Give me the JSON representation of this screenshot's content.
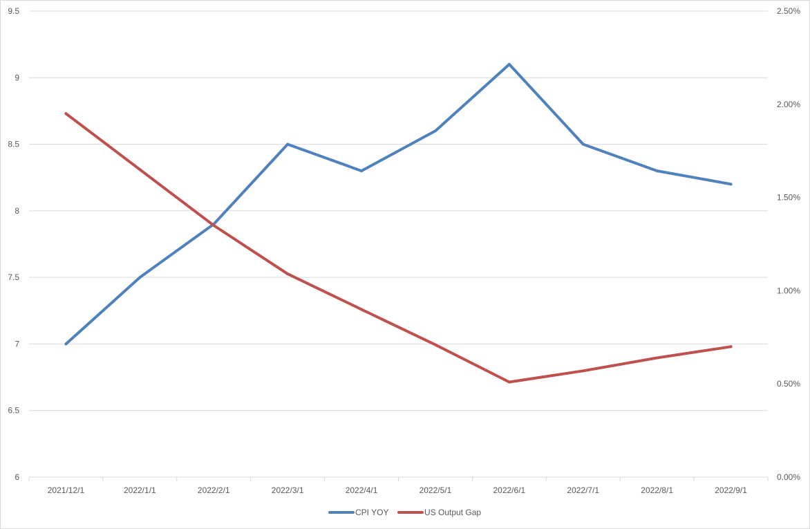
{
  "chart_data": {
    "type": "line",
    "title": "",
    "categories": [
      "2021/12/1",
      "2022/1/1",
      "2022/2/1",
      "2022/3/1",
      "2022/4/1",
      "2022/5/1",
      "2022/6/1",
      "2022/7/1",
      "2022/8/1",
      "2022/9/1"
    ],
    "series": [
      {
        "name": "CPI YOY",
        "axis": "left",
        "color": "#4f81bd",
        "values": [
          7.0,
          7.5,
          7.9,
          8.5,
          8.3,
          8.6,
          9.1,
          8.5,
          8.3,
          8.2
        ]
      },
      {
        "name": "US Output Gap",
        "axis": "right",
        "color": "#c0504d",
        "values": [
          0.0195,
          0.0165,
          0.0135,
          0.0109,
          0.009,
          0.0071,
          0.0051,
          0.0057,
          0.0064,
          0.007
        ]
      }
    ],
    "y_left": {
      "ylim": [
        6,
        9.5
      ],
      "ticks": [
        "6",
        "6.5",
        "7",
        "7.5",
        "8",
        "8.5",
        "9",
        "9.5"
      ],
      "tick_values": [
        6,
        6.5,
        7,
        7.5,
        8,
        8.5,
        9,
        9.5
      ]
    },
    "y_right": {
      "ylim": [
        0,
        0.025
      ],
      "ticks": [
        "0.00%",
        "0.50%",
        "1.00%",
        "1.50%",
        "2.00%",
        "2.50%"
      ],
      "tick_values": [
        0,
        0.005,
        0.01,
        0.015,
        0.02,
        0.025
      ]
    },
    "grid": true,
    "legend": "bottom"
  }
}
